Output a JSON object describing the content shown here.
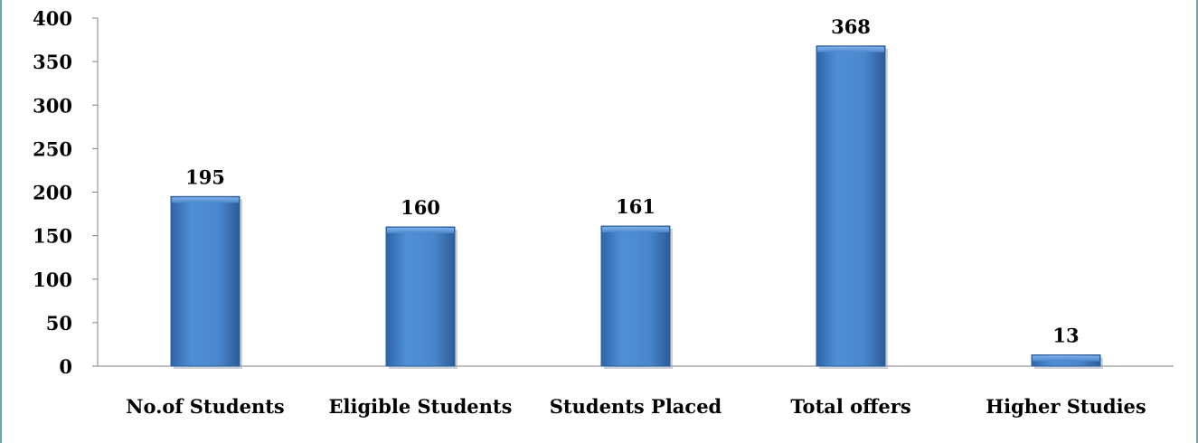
{
  "chart_data": {
    "type": "bar",
    "title": "",
    "xlabel": "",
    "ylabel": "",
    "categories": [
      "No.of Students",
      "Eligible Students",
      "Students Placed",
      "Total offers",
      "Higher Studies"
    ],
    "values": [
      195,
      160,
      161,
      368,
      13
    ],
    "ylim": [
      0,
      400
    ],
    "yticks": [
      0,
      50,
      100,
      150,
      200,
      250,
      300,
      350,
      400
    ],
    "grid": false,
    "legend": "none",
    "data_labels": true,
    "colors": {
      "bar_fill": "#4a86cc",
      "bar_edge": "#2e5f9a",
      "axis": "#808080",
      "text": "#000000",
      "frame": "#6aa7a8"
    }
  }
}
